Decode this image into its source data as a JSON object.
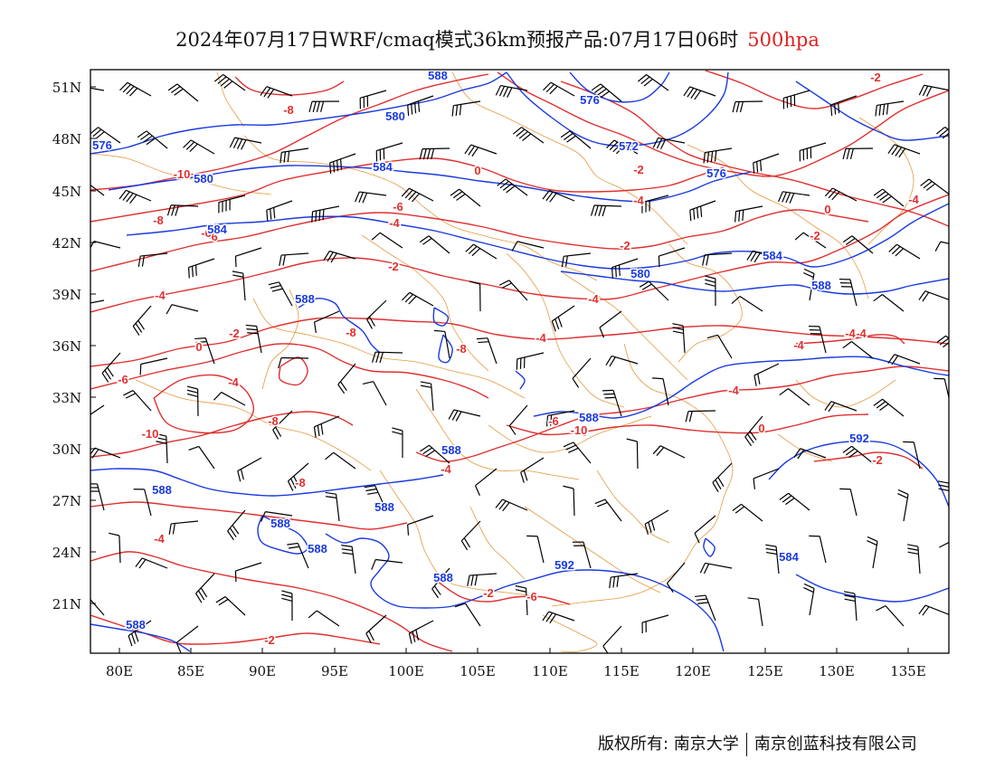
{
  "header": {
    "title": "2024年07月17日WRF/cmaq模式36km预报产品:07月17日06时",
    "level": "500hpa",
    "level_color": "#e02020"
  },
  "map": {
    "lat_ticks": [
      "51N",
      "48N",
      "45N",
      "42N",
      "39N",
      "36N",
      "33N",
      "30N",
      "27N",
      "24N",
      "21N"
    ],
    "lon_ticks": [
      "80E",
      "85E",
      "90E",
      "95E",
      "100E",
      "105E",
      "110E",
      "115E",
      "120E",
      "125E",
      "130E",
      "135E"
    ],
    "geopotential_color": "#1a3ae0",
    "temperature_color": "#e03030",
    "boundary_color": "#e39a40",
    "wind_barb_color": "#000000",
    "geopotential_labels": [
      "576",
      "588",
      "580",
      "576",
      "572",
      "576",
      "584",
      "580",
      "584",
      "580",
      "584",
      "588",
      "588",
      "588",
      "592",
      "588",
      "588",
      "588",
      "588",
      "588",
      "592",
      "584",
      "588",
      "588"
    ],
    "temperature_labels": [
      "-8",
      "-10",
      "-8",
      "-6",
      "-6",
      "-4",
      "-2",
      "-4",
      "-2",
      "0",
      "-4",
      "-6",
      "-8",
      "-10",
      "-8",
      "-4",
      "-2",
      "-4",
      "-4",
      "-4",
      "-4",
      "-2",
      "-4",
      "-2",
      "0",
      "-2",
      "0",
      "-2",
      "-4",
      "-4",
      "-4",
      "-4",
      "-4",
      "0",
      "0",
      "-2",
      "-2",
      "-6",
      "-6",
      "-8",
      "-10",
      "-8",
      "-6"
    ]
  },
  "footer": {
    "copyright": "版权所有: 南京大学",
    "company": "南京创蓝科技有限公司"
  }
}
